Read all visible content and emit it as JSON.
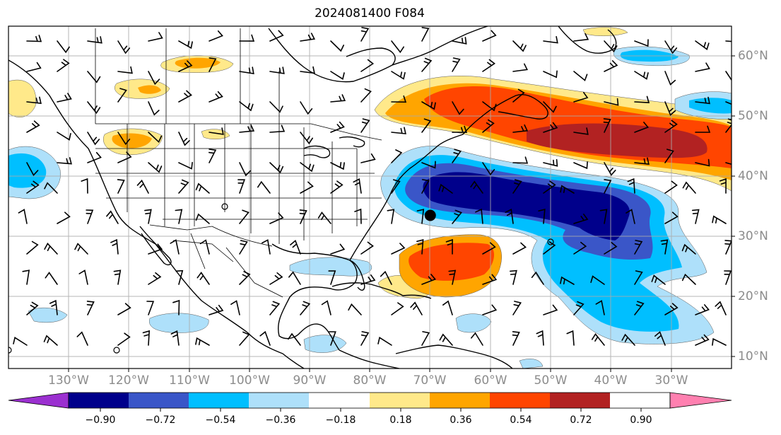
{
  "title": "2024081400 F084",
  "longitude_labels": [
    "130°W",
    "120°W",
    "110°W",
    "100°W",
    "90°W",
    "80°W",
    "70°W",
    "60°W",
    "50°W",
    "40°W",
    "30°W"
  ],
  "latitude_labels": [
    "60°N",
    "50°N",
    "40°N",
    "30°N",
    "20°N",
    "10°N"
  ],
  "colorbar": {
    "ticks": [
      "−0.90",
      "−0.72",
      "−0.54",
      "−0.36",
      "−0.18",
      "0.18",
      "0.36",
      "0.54",
      "0.72",
      "0.90"
    ],
    "colors": [
      "#9b30d0",
      "#00008b",
      "#3a56c8",
      "#00bfff",
      "#aee0fa",
      "#ffffff",
      "#ffe98a",
      "#ffa500",
      "#ff4500",
      "#b22222",
      "#ff80b0"
    ]
  },
  "map": {
    "extent": {
      "lon_min": -138,
      "lon_max": -18,
      "lat_min": 6,
      "lat_max": 63
    },
    "storm_marker": {
      "lon": -68,
      "lat": 31.5
    }
  }
}
